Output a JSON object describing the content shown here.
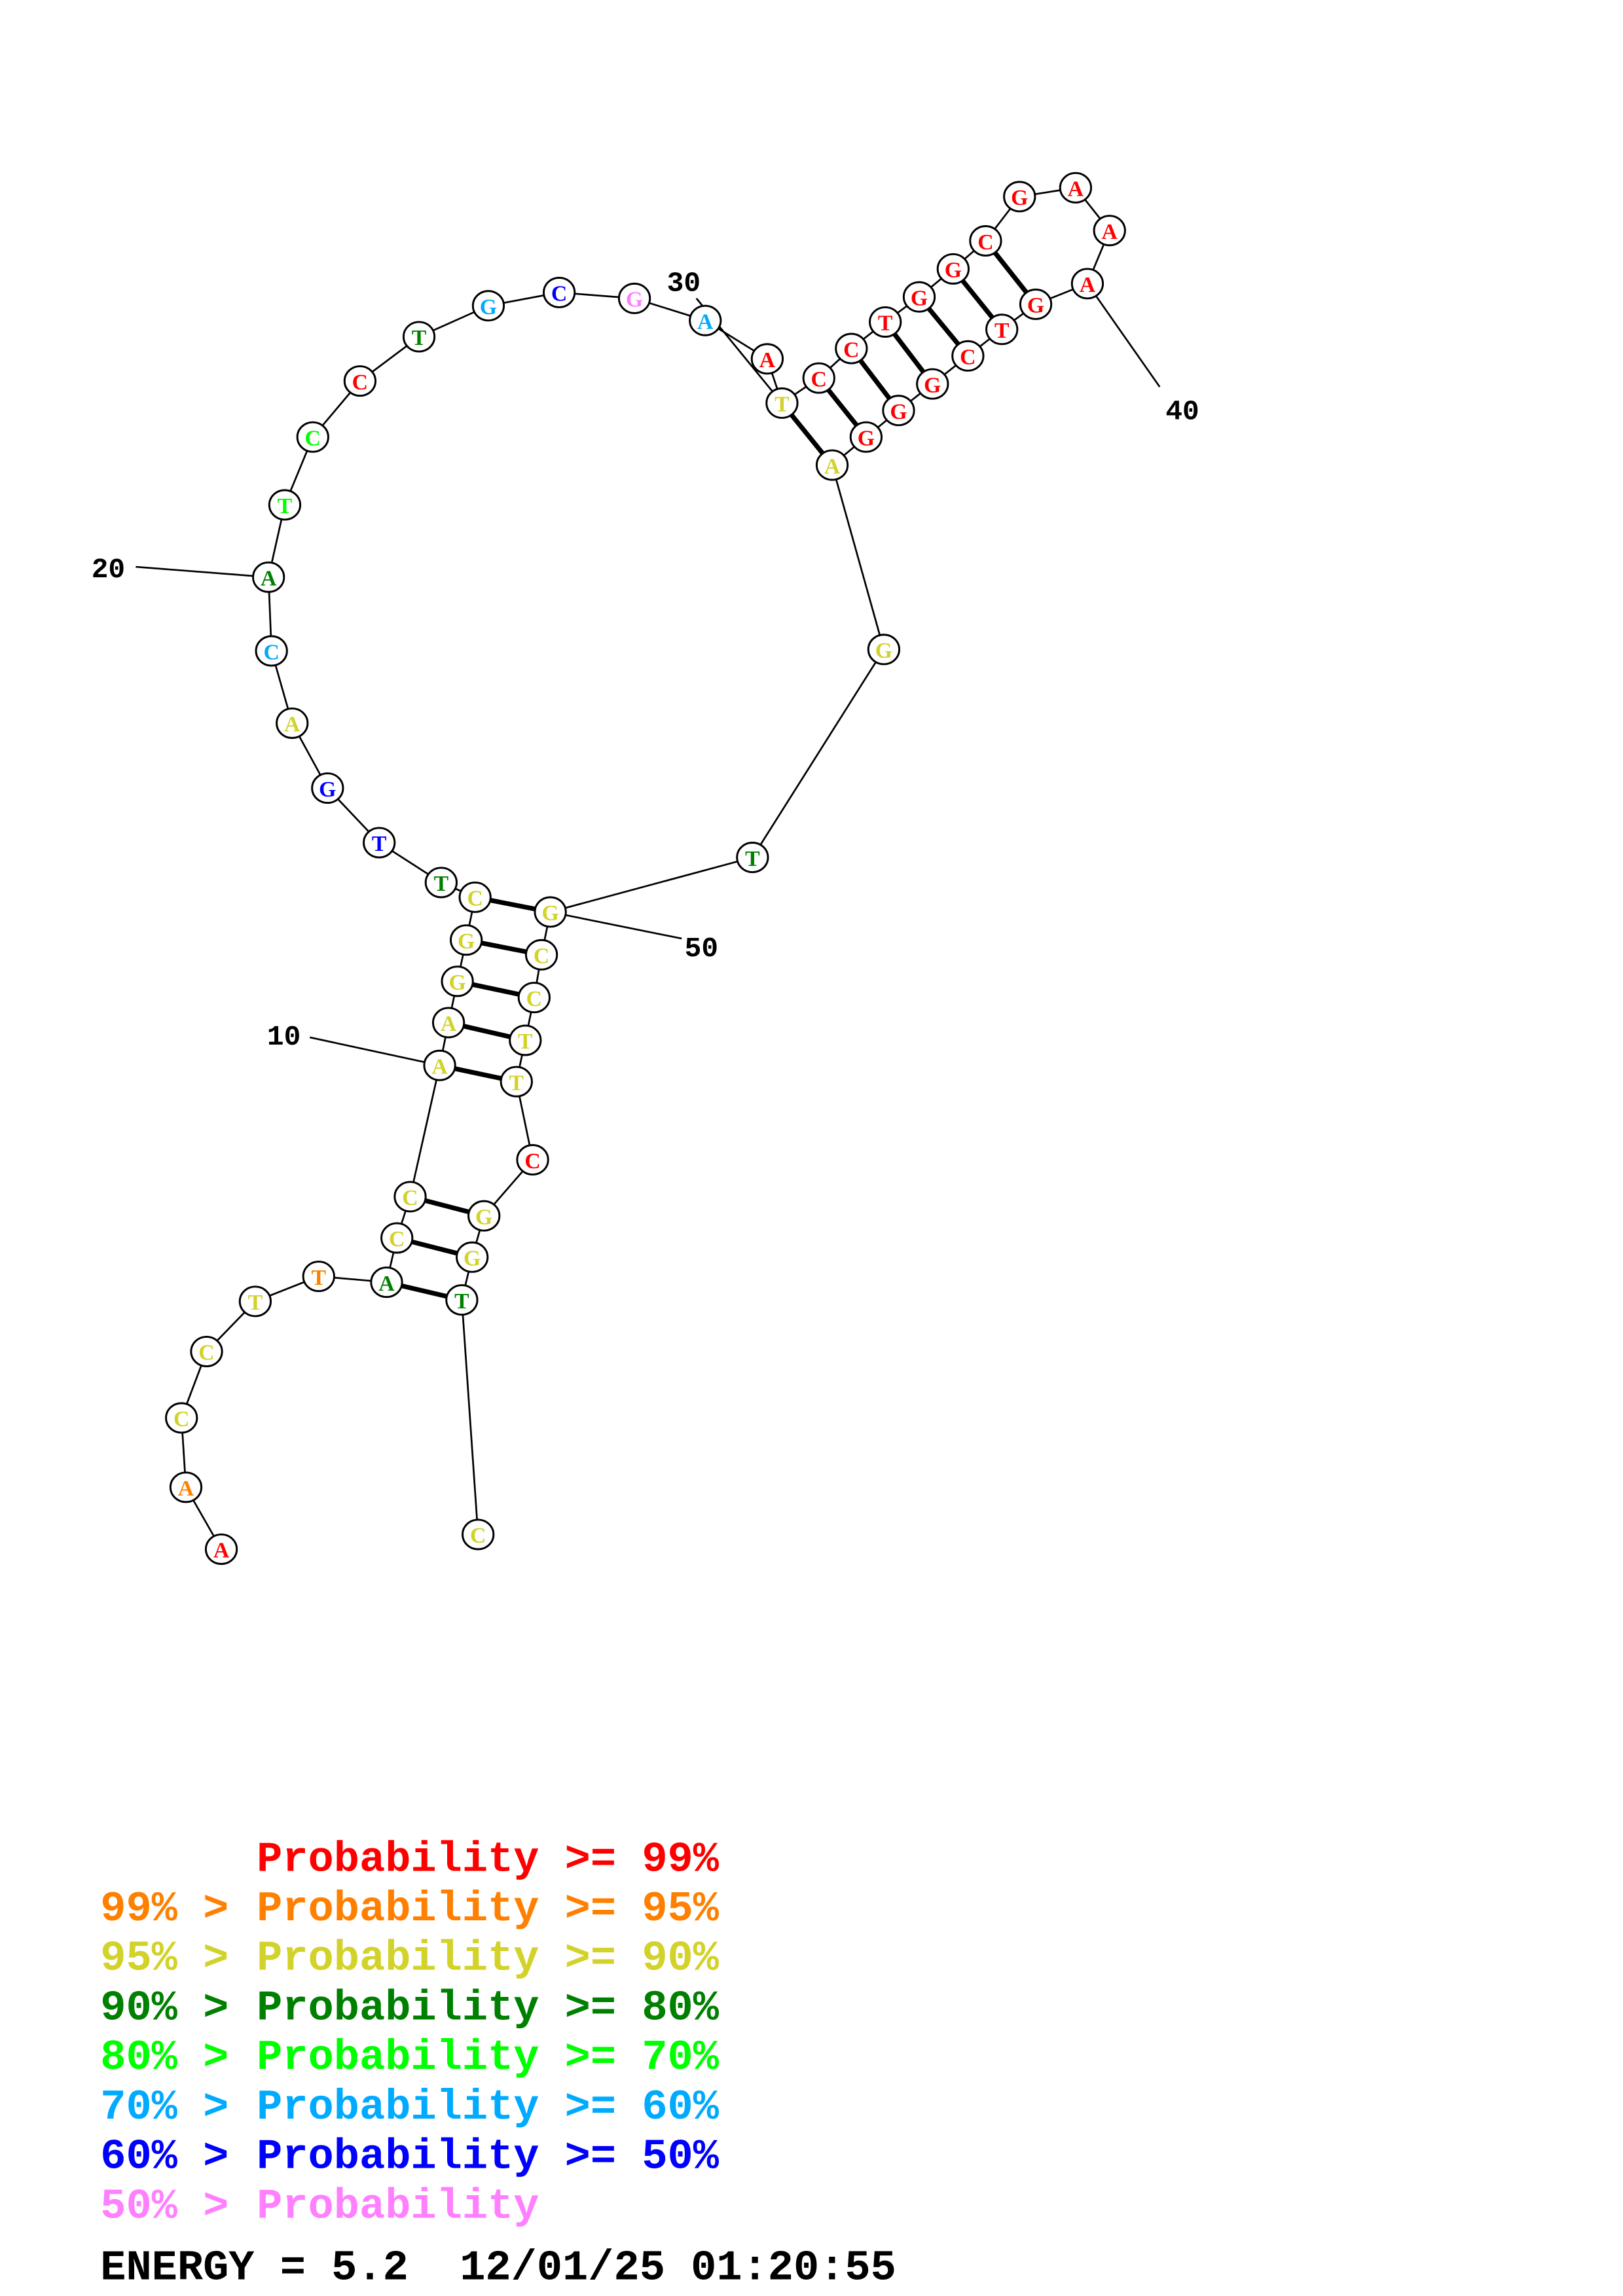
{
  "structure": {
    "sequence": "AACCTTACCAAGGCTTGACATCCTGCGAATCCTGGCGAAAGTCGGGAGTGCCTTCGGTC",
    "probability_classes": [
      0,
      1,
      2,
      2,
      2,
      1,
      3,
      2,
      2,
      2,
      2,
      2,
      2,
      2,
      3,
      6,
      6,
      2,
      5,
      3,
      4,
      4,
      0,
      3,
      5,
      6,
      7,
      5,
      0,
      2,
      0,
      0,
      0,
      0,
      0,
      0,
      0,
      0,
      0,
      0,
      0,
      0,
      0,
      0,
      0,
      0,
      2,
      2,
      3,
      2,
      2,
      2,
      2,
      2,
      0,
      2,
      2,
      3,
      2
    ],
    "pairs": [
      [
        7,
        58
      ],
      [
        8,
        57
      ],
      [
        9,
        56
      ],
      [
        10,
        54
      ],
      [
        11,
        53
      ],
      [
        12,
        52
      ],
      [
        13,
        51
      ],
      [
        14,
        50
      ],
      [
        30,
        47
      ],
      [
        31,
        46
      ],
      [
        32,
        45
      ],
      [
        33,
        44
      ],
      [
        34,
        43
      ],
      [
        35,
        42
      ],
      [
        36,
        41
      ]
    ],
    "position_labels": [
      "10",
      "20",
      "30",
      "40",
      "50"
    ]
  },
  "legend": {
    "colors": [
      "#ff0000",
      "#ff8000",
      "#d2d22a",
      "#008000",
      "#00ff00",
      "#00aaff",
      "#0000ff",
      "#ff80ff"
    ],
    "rows": [
      {
        "prefix": "",
        "label": "Probability >= 99%"
      },
      {
        "prefix": "99% > ",
        "label": "Probability >= 95%"
      },
      {
        "prefix": "95% > ",
        "label": "Probability >= 90%"
      },
      {
        "prefix": "90% > ",
        "label": "Probability >= 80%"
      },
      {
        "prefix": "80% > ",
        "label": "Probability >= 70%"
      },
      {
        "prefix": "70% > ",
        "label": "Probability >= 60%"
      },
      {
        "prefix": "60% > ",
        "label": "Probability >= 50%"
      },
      {
        "prefix": "50% > ",
        "label": "Probability"
      }
    ]
  },
  "footer": {
    "energy": "ENERGY = 5.2  12/01/25 01:20:55"
  }
}
